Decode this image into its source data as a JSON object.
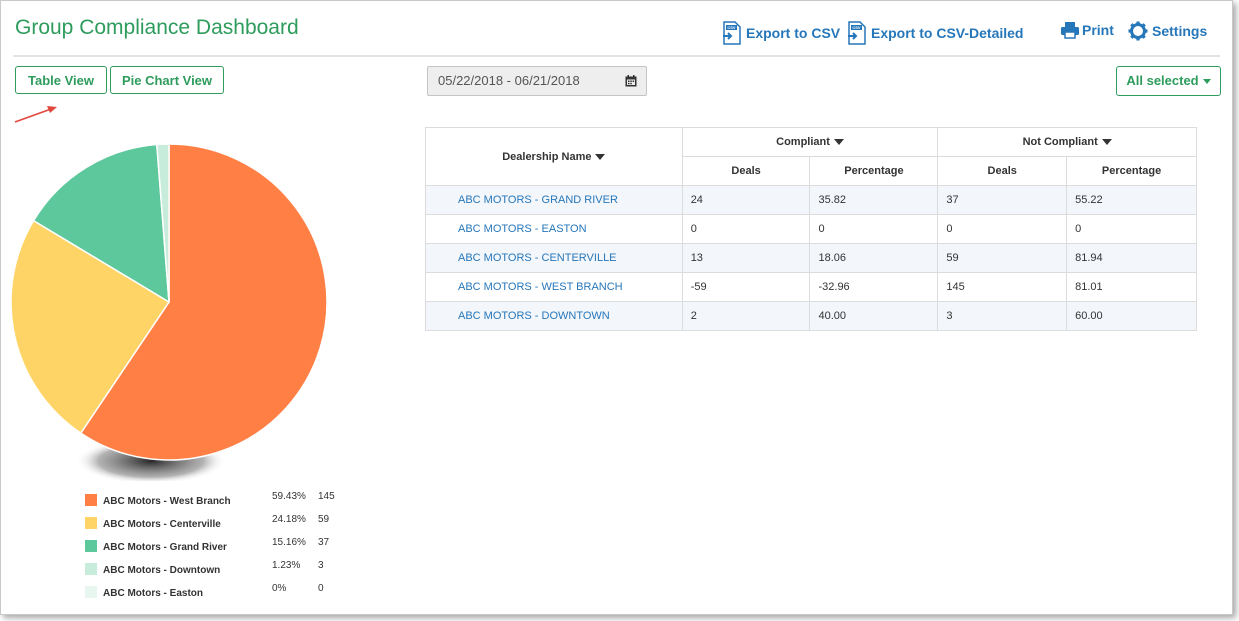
{
  "header": {
    "title": "Group Compliance Dashboard",
    "export_csv": "Export to CSV",
    "export_csv_detailed": "Export to CSV-Detailed",
    "print": "Print",
    "settings": "Settings",
    "csv_icon_text": "CSV"
  },
  "toolbar": {
    "table_view": "Table View",
    "pie_chart_view": "Pie Chart View",
    "date_range": "05/22/2018 - 06/21/2018",
    "all_selected": "All selected"
  },
  "table": {
    "header_dealership": "Dealership Name",
    "header_compliant": "Compliant",
    "header_not_compliant": "Not Compliant",
    "header_deals": "Deals",
    "header_percentage": "Percentage",
    "rows": [
      {
        "name": "ABC MOTORS - GRAND RIVER",
        "c_deals": "24",
        "c_pct": "35.82",
        "n_deals": "37",
        "n_pct": "55.22"
      },
      {
        "name": "ABC MOTORS - EASTON",
        "c_deals": "0",
        "c_pct": "0",
        "n_deals": "0",
        "n_pct": "0"
      },
      {
        "name": "ABC MOTORS - CENTERVILLE",
        "c_deals": "13",
        "c_pct": "18.06",
        "n_deals": "59",
        "n_pct": "81.94"
      },
      {
        "name": "ABC MOTORS - WEST BRANCH",
        "c_deals": "-59",
        "c_pct": "-32.96",
        "n_deals": "145",
        "n_pct": "81.01"
      },
      {
        "name": "ABC MOTORS - DOWNTOWN",
        "c_deals": "2",
        "c_pct": "40.00",
        "n_deals": "3",
        "n_pct": "60.00"
      }
    ]
  },
  "chart_data": {
    "type": "pie",
    "categories": [
      "ABC Motors - West Branch",
      "ABC Motors - Centerville",
      "ABC Motors - Grand River",
      "ABC Motors - Downtown",
      "ABC Motors - Easton"
    ],
    "values": [
      145,
      59,
      37,
      3,
      0
    ],
    "percent_labels": [
      "59.43%",
      "24.18%",
      "15.16%",
      "1.23%",
      "0%"
    ],
    "count_labels": [
      "145",
      "59",
      "37",
      "3",
      "0"
    ],
    "colors": [
      "#ff7f45",
      "#ffd466",
      "#5ec89d",
      "#c8ecdc",
      "#e8f6f0"
    ],
    "legend_position": "bottom"
  }
}
